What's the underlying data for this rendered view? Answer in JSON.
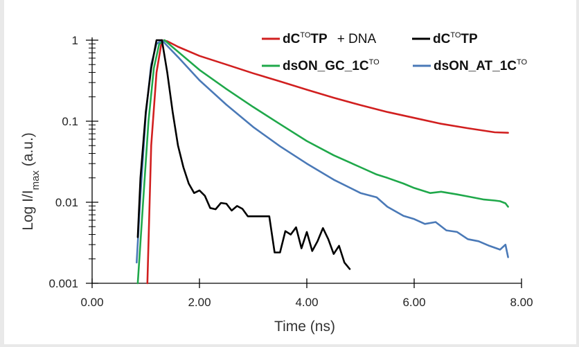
{
  "chart_data": {
    "type": "line",
    "title": "",
    "xlabel": "Time (ns)",
    "ylabel": "Log I/Imax (a.u.)",
    "ylabel_main": "Log I/I",
    "ylabel_sub": "max",
    "ylabel_unit": " (a.u.)",
    "xlim": [
      0,
      8
    ],
    "ylim": [
      0.001,
      1
    ],
    "yscale": "log",
    "xticks": [
      "0.00",
      "2.00",
      "4.00",
      "6.00",
      "8.00"
    ],
    "yticks": [
      "0.001",
      "0.01",
      "0.1",
      "1"
    ],
    "grid": false,
    "legend_position": "top-right",
    "legend": [
      {
        "base": "dC",
        "sup": "TO",
        "tail": "TP",
        "suffix": "+ DNA",
        "color": "#d11f1f"
      },
      {
        "base": "dC",
        "sup": "TO",
        "tail": "TP",
        "suffix": "",
        "color": "#000000"
      },
      {
        "base": "dsON_GC_1C",
        "sup": "TO",
        "tail": "",
        "suffix": "",
        "color": "#1fa84a"
      },
      {
        "base": "dsON_AT_1C",
        "sup": "TO",
        "tail": "",
        "suffix": "",
        "color": "#4a79b7"
      }
    ],
    "series": [
      {
        "name": "dCTOTP + DNA",
        "color": "#d11f1f",
        "x": [
          1.03,
          1.1,
          1.2,
          1.3,
          1.4,
          1.6,
          2.0,
          2.5,
          3.0,
          3.5,
          4.0,
          4.5,
          5.0,
          5.5,
          6.0,
          6.5,
          7.0,
          7.5,
          7.75
        ],
        "y": [
          0.001,
          0.05,
          0.4,
          1.0,
          0.97,
          0.83,
          0.64,
          0.5,
          0.39,
          0.31,
          0.245,
          0.195,
          0.158,
          0.13,
          0.11,
          0.093,
          0.082,
          0.073,
          0.072
        ]
      },
      {
        "name": "dCTOTP",
        "color": "#000000",
        "x": [
          0.85,
          0.9,
          1.0,
          1.1,
          1.2,
          1.3,
          1.4,
          1.5,
          1.6,
          1.7,
          1.8,
          1.9,
          2.0,
          2.1,
          2.2,
          2.3,
          2.4,
          2.5,
          2.6,
          2.7,
          2.8,
          2.9,
          3.0,
          3.1,
          3.2,
          3.3,
          3.4,
          3.5,
          3.6,
          3.7,
          3.8,
          3.9,
          4.0,
          4.1,
          4.2,
          4.3,
          4.4,
          4.5,
          4.6,
          4.7,
          4.8
        ],
        "y": [
          0.0037,
          0.02,
          0.13,
          0.45,
          1.0,
          1.0,
          0.4,
          0.13,
          0.05,
          0.027,
          0.017,
          0.013,
          0.014,
          0.012,
          0.0085,
          0.0082,
          0.0098,
          0.0096,
          0.0079,
          0.009,
          0.0083,
          0.0067,
          0.0067,
          0.0067,
          0.0067,
          0.0067,
          0.0024,
          0.0024,
          0.0044,
          0.004,
          0.0049,
          0.0027,
          0.0043,
          0.0025,
          0.0033,
          0.0048,
          0.0035,
          0.0023,
          0.0029,
          0.0018,
          0.0015
        ]
      },
      {
        "name": "dsON_GC_1CTO",
        "color": "#1fa84a",
        "x": [
          0.85,
          0.95,
          1.05,
          1.15,
          1.25,
          1.35,
          1.5,
          2.0,
          2.5,
          3.0,
          3.5,
          4.0,
          4.5,
          5.0,
          5.3,
          5.5,
          5.8,
          6.0,
          6.3,
          6.5,
          6.8,
          7.0,
          7.3,
          7.5,
          7.6,
          7.7,
          7.75
        ],
        "y": [
          0.001,
          0.01,
          0.1,
          0.45,
          0.9,
          1.0,
          0.82,
          0.43,
          0.25,
          0.15,
          0.092,
          0.057,
          0.038,
          0.027,
          0.022,
          0.02,
          0.017,
          0.015,
          0.013,
          0.0135,
          0.0125,
          0.0118,
          0.0108,
          0.0105,
          0.0103,
          0.0097,
          0.0088
        ]
      },
      {
        "name": "dsON_AT_1CTO",
        "color": "#4a79b7",
        "x": [
          0.83,
          0.9,
          1.0,
          1.1,
          1.2,
          1.3,
          1.4,
          1.6,
          2.0,
          2.5,
          3.0,
          3.5,
          4.0,
          4.5,
          5.0,
          5.3,
          5.5,
          5.8,
          6.0,
          6.2,
          6.4,
          6.6,
          6.8,
          7.0,
          7.2,
          7.4,
          7.6,
          7.7,
          7.75
        ],
        "y": [
          0.0018,
          0.012,
          0.12,
          0.5,
          0.9,
          1.0,
          0.85,
          0.62,
          0.32,
          0.16,
          0.085,
          0.049,
          0.03,
          0.019,
          0.013,
          0.0115,
          0.0088,
          0.0068,
          0.0062,
          0.0054,
          0.0057,
          0.0045,
          0.0043,
          0.0035,
          0.0033,
          0.0029,
          0.0026,
          0.003,
          0.0021
        ]
      }
    ]
  }
}
